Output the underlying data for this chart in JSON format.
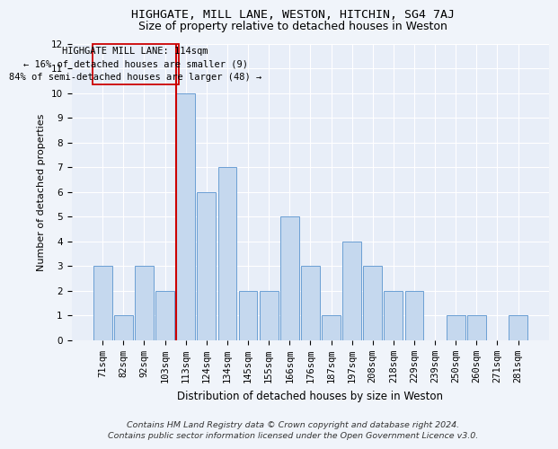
{
  "title1": "HIGHGATE, MILL LANE, WESTON, HITCHIN, SG4 7AJ",
  "title2": "Size of property relative to detached houses in Weston",
  "xlabel": "Distribution of detached houses by size in Weston",
  "ylabel": "Number of detached properties",
  "categories": [
    "71sqm",
    "82sqm",
    "92sqm",
    "103sqm",
    "113sqm",
    "124sqm",
    "134sqm",
    "145sqm",
    "155sqm",
    "166sqm",
    "176sqm",
    "187sqm",
    "197sqm",
    "208sqm",
    "218sqm",
    "229sqm",
    "239sqm",
    "250sqm",
    "260sqm",
    "271sqm",
    "281sqm"
  ],
  "values": [
    3,
    1,
    3,
    2,
    10,
    6,
    7,
    2,
    2,
    5,
    3,
    1,
    4,
    3,
    2,
    2,
    0,
    1,
    1,
    0,
    1
  ],
  "bar_color": "#c5d8ee",
  "bar_edge_color": "#6b9fd4",
  "highlight_index": 4,
  "highlight_line_color": "#cc0000",
  "ylim": [
    0,
    12
  ],
  "yticks": [
    0,
    1,
    2,
    3,
    4,
    5,
    6,
    7,
    8,
    9,
    10,
    11,
    12
  ],
  "annotation_title": "HIGHGATE MILL LANE: 114sqm",
  "annotation_line1": "← 16% of detached houses are smaller (9)",
  "annotation_line2": "84% of semi-detached houses are larger (48) →",
  "annotation_box_color": "#cc0000",
  "footnote1": "Contains HM Land Registry data © Crown copyright and database right 2024.",
  "footnote2": "Contains public sector information licensed under the Open Government Licence v3.0.",
  "background_color": "#f0f4fa",
  "plot_bg_color": "#e8eef8",
  "grid_color": "#ffffff",
  "title1_fontsize": 9.5,
  "title2_fontsize": 9,
  "xlabel_fontsize": 8.5,
  "ylabel_fontsize": 8,
  "tick_fontsize": 7.5,
  "annotation_fontsize": 7.5,
  "footnote_fontsize": 6.8
}
